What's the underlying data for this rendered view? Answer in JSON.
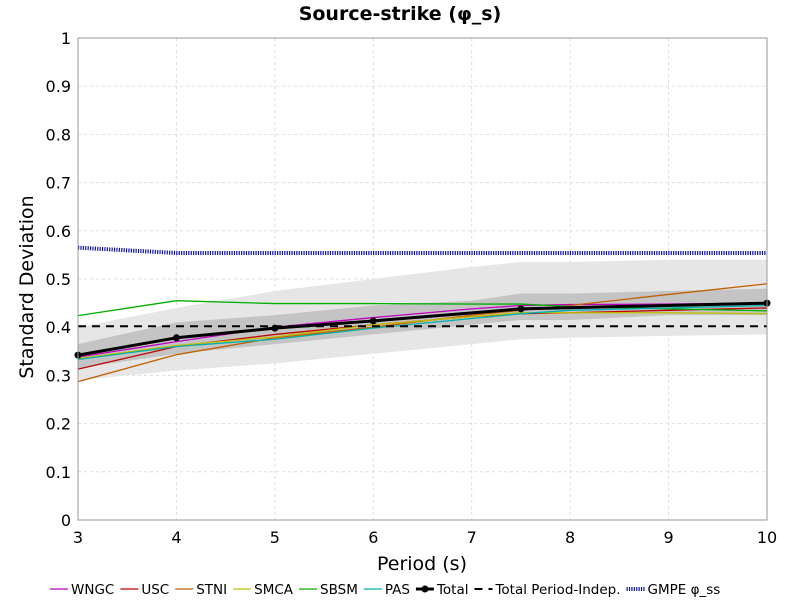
{
  "chart_data": {
    "type": "line",
    "title": "Source-strike (φ_s)",
    "xlabel": "Period (s)",
    "ylabel": "Standard Deviation",
    "xlim": [
      3,
      10
    ],
    "ylim": [
      0,
      1
    ],
    "xticks": [
      3,
      4,
      5,
      6,
      7,
      8,
      9,
      10
    ],
    "xtick_labels": [
      "3",
      "4",
      "5",
      "6",
      "7",
      "8",
      "9",
      "10"
    ],
    "yticks": [
      0,
      0.1,
      0.2,
      0.3,
      0.4,
      0.5,
      0.6,
      0.7,
      0.8,
      0.9,
      1
    ],
    "ytick_labels": [
      "0",
      "0.1",
      "0.2",
      "0.3",
      "0.4",
      "0.5",
      "0.6",
      "0.7",
      "0.8",
      "0.9",
      "1"
    ],
    "grid": true,
    "legend_position": "bottom",
    "bands": [
      {
        "color": "#e6e6e6",
        "x": [
          3,
          4,
          5,
          6,
          7,
          7.5,
          8,
          9,
          10
        ],
        "lower": [
          0.29,
          0.31,
          0.325,
          0.345,
          0.365,
          0.375,
          0.378,
          0.382,
          0.385
        ],
        "upper": [
          0.4,
          0.44,
          0.475,
          0.5,
          0.525,
          0.535,
          0.535,
          0.54,
          0.54
        ]
      },
      {
        "color": "#c4c4c4",
        "x": [
          3,
          4,
          5,
          6,
          7,
          7.5,
          8,
          9,
          10
        ],
        "lower": [
          0.315,
          0.345,
          0.365,
          0.385,
          0.405,
          0.415,
          0.415,
          0.425,
          0.425
        ],
        "upper": [
          0.365,
          0.41,
          0.425,
          0.445,
          0.455,
          0.47,
          0.47,
          0.475,
          0.48
        ]
      }
    ],
    "series": [
      {
        "name": "WNGC",
        "color": "#bf00bf",
        "width": 1.3,
        "x": [
          3,
          4,
          5,
          6,
          7,
          7.5,
          8,
          9,
          10
        ],
        "values": [
          0.338,
          0.37,
          0.4,
          0.42,
          0.438,
          0.445,
          0.447,
          0.448,
          0.45
        ]
      },
      {
        "name": "USC",
        "color": "#c00000",
        "width": 1.3,
        "x": [
          3,
          4,
          5,
          6,
          7,
          7.5,
          8,
          9,
          10
        ],
        "values": [
          0.313,
          0.36,
          0.385,
          0.405,
          0.422,
          0.428,
          0.43,
          0.435,
          0.44
        ]
      },
      {
        "name": "STNI",
        "color": "#c06000",
        "width": 1.3,
        "x": [
          3,
          4,
          5,
          6,
          7,
          7.5,
          8,
          9,
          10
        ],
        "values": [
          0.287,
          0.343,
          0.378,
          0.4,
          0.425,
          0.435,
          0.445,
          0.468,
          0.49
        ]
      },
      {
        "name": "SMCA",
        "color": "#c0c000",
        "width": 1.3,
        "x": [
          3,
          4,
          5,
          6,
          7,
          7.5,
          8,
          9,
          10
        ],
        "values": [
          0.335,
          0.362,
          0.38,
          0.405,
          0.422,
          0.43,
          0.43,
          0.43,
          0.428
        ]
      },
      {
        "name": "SBSM",
        "color": "#00b000",
        "width": 1.3,
        "x": [
          3,
          4,
          5,
          6,
          7,
          7.5,
          8,
          9,
          10
        ],
        "values": [
          0.424,
          0.455,
          0.449,
          0.449,
          0.448,
          0.448,
          0.443,
          0.438,
          0.434
        ]
      },
      {
        "name": "PAS",
        "color": "#00b0b0",
        "width": 1.3,
        "x": [
          3,
          4,
          5,
          6,
          7,
          7.5,
          8,
          9,
          10
        ],
        "values": [
          0.333,
          0.36,
          0.375,
          0.398,
          0.418,
          0.428,
          0.435,
          0.44,
          0.445
        ]
      },
      {
        "name": "Total",
        "color": "#000000",
        "width": 3,
        "marker": true,
        "x": [
          3,
          4,
          5,
          6,
          7.5,
          10
        ],
        "values": [
          0.342,
          0.378,
          0.398,
          0.413,
          0.438,
          0.45
        ]
      },
      {
        "name": "Total Period-Indep.",
        "color": "#000000",
        "width": 2,
        "dash": "8,6",
        "x": [
          3,
          10
        ],
        "values": [
          0.402,
          0.402
        ]
      },
      {
        "name": "GMPE φ_ss",
        "color": "#1010a0",
        "width": 4,
        "dash": "1.2,1.2",
        "x": [
          3,
          4,
          5,
          6,
          7,
          8,
          9,
          10
        ],
        "values": [
          0.565,
          0.554,
          0.554,
          0.554,
          0.554,
          0.554,
          0.554,
          0.554
        ]
      }
    ]
  }
}
